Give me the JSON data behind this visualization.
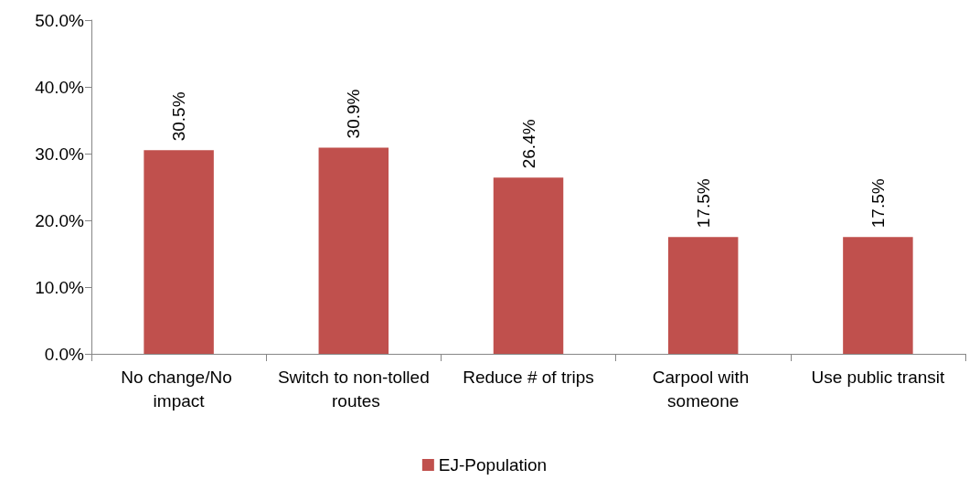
{
  "chart_data": {
    "type": "bar",
    "categories": [
      "No change/No impact",
      "Switch to non-tolled routes",
      "Reduce # of trips",
      "Carpool with someone",
      "Use public transit"
    ],
    "series": [
      {
        "name": "EJ-Population",
        "color": "#c0504d",
        "values": [
          30.5,
          30.9,
          26.4,
          17.5,
          17.5
        ],
        "value_labels": [
          "30.5%",
          "30.9%",
          "26.4%",
          "17.5%",
          "17.5%"
        ]
      }
    ],
    "ylim": [
      0,
      50
    ],
    "yticks": [
      {
        "value": 0,
        "label": "0.0%"
      },
      {
        "value": 10,
        "label": "10.0%"
      },
      {
        "value": 20,
        "label": "20.0%"
      },
      {
        "value": 30,
        "label": "30.0%"
      },
      {
        "value": 40,
        "label": "40.0%"
      },
      {
        "value": 50,
        "label": "50.0%"
      }
    ],
    "grid": false,
    "legend": "bottom"
  }
}
